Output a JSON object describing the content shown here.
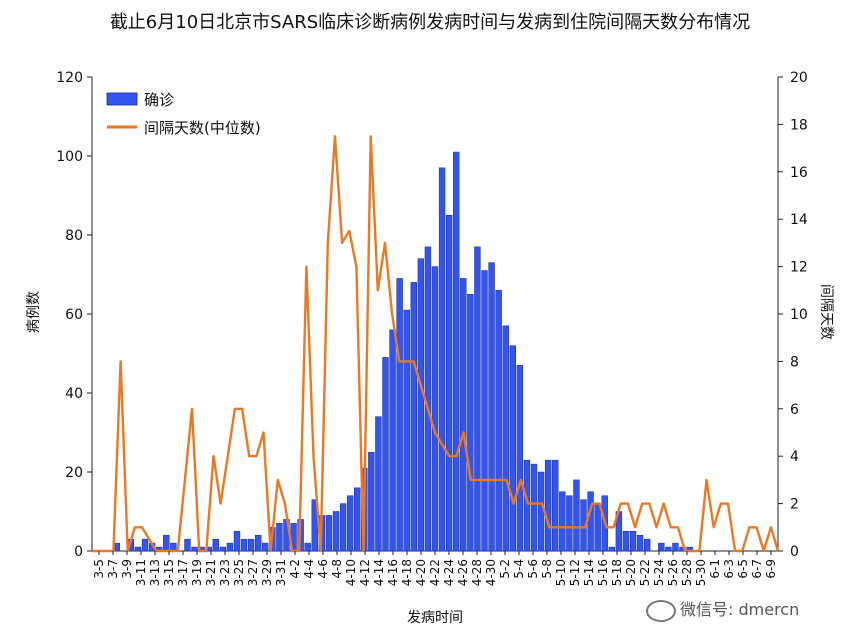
{
  "chart_data": {
    "type": "bar",
    "title": "截止6月10日北京市SARS临床诊断病例发病时间与发病到住院间隔天数分布情况",
    "xlabel": "发病时间",
    "ylabel": "病例数",
    "ylabel_right": "间隔天数",
    "ylim": [
      0,
      120
    ],
    "yticks": [
      0,
      20,
      40,
      60,
      80,
      100,
      120
    ],
    "ylim_right": [
      0,
      20
    ],
    "yticks_right": [
      0,
      2,
      4,
      6,
      8,
      10,
      12,
      14,
      16,
      18,
      20
    ],
    "legend_position": "top-left",
    "xtick_labels": [
      "3-5",
      "3-7",
      "3-9",
      "3-11",
      "3-13",
      "3-15",
      "3-17",
      "3-19",
      "3-21",
      "3-23",
      "3-25",
      "3-27",
      "3-29",
      "3-31",
      "4-2",
      "4-4",
      "4-6",
      "4-8",
      "4-10",
      "4-12",
      "4-14",
      "4-16",
      "4-18",
      "4-20",
      "4-22",
      "4-24",
      "4-26",
      "4-28",
      "4-30",
      "5-2",
      "5-4",
      "5-6",
      "5-8",
      "5-10",
      "5-12",
      "5-14",
      "5-16",
      "5-18",
      "5-20",
      "5-22",
      "5-24",
      "5-26",
      "5-28",
      "5-30",
      "6-1",
      "6-3",
      "6-5",
      "6-7",
      "6-9"
    ],
    "series": [
      {
        "name": "确诊",
        "kind": "bar",
        "color": "#3355ee",
        "values": [
          0,
          0,
          0,
          2,
          0,
          3,
          1,
          3,
          2,
          1,
          4,
          2,
          0,
          3,
          1,
          1,
          1,
          3,
          1,
          2,
          5,
          3,
          3,
          4,
          2,
          6,
          7,
          8,
          7,
          8,
          2,
          13,
          9,
          9,
          10,
          12,
          14,
          16,
          21,
          25,
          34,
          49,
          56,
          69,
          61,
          68,
          74,
          77,
          72,
          97,
          85,
          101,
          69,
          65,
          77,
          71,
          73,
          66,
          57,
          52,
          47,
          23,
          22,
          20,
          23,
          23,
          15,
          14,
          18,
          13,
          15,
          12,
          14,
          1,
          10,
          5,
          5,
          4,
          3,
          0,
          2,
          1,
          2,
          1,
          1,
          0,
          0,
          0,
          0,
          0,
          0,
          0,
          0,
          0,
          0,
          0,
          0
        ]
      },
      {
        "name": "间隔天数(中位数)",
        "kind": "line",
        "color": "#ee7722",
        "values": [
          0,
          0,
          0,
          0,
          8,
          0,
          1,
          1,
          0.5,
          0,
          0,
          0,
          0,
          3,
          6,
          0,
          0,
          4,
          2,
          4,
          6,
          6,
          4,
          4,
          5,
          0,
          3,
          2,
          0,
          0,
          12,
          4,
          0,
          13,
          17.5,
          13,
          13.5,
          12,
          0,
          17.5,
          11,
          13,
          10,
          8,
          8,
          8,
          7,
          6,
          5,
          4.5,
          4,
          4,
          5,
          3,
          3,
          3,
          3,
          3,
          3,
          2,
          3,
          2,
          2,
          2,
          1,
          1,
          1,
          1,
          1,
          1,
          2,
          2,
          1,
          1,
          2,
          2,
          1,
          2,
          2,
          1,
          2,
          1,
          1,
          0,
          0,
          0,
          3,
          1,
          2,
          2,
          0,
          0,
          1,
          1,
          0,
          1,
          0
        ]
      }
    ]
  },
  "watermark": {
    "text": "微信号: dmercn"
  }
}
